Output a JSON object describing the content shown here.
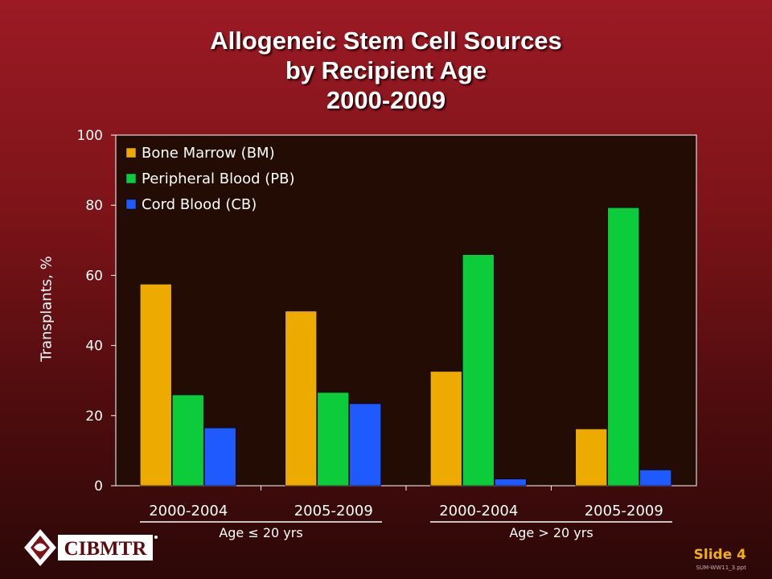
{
  "title_lines": [
    "Allogeneic Stem Cell Sources",
    "by Recipient Age",
    "2000-2009"
  ],
  "chart_data": {
    "type": "bar",
    "ylabel": "Transplants, %",
    "ylim": [
      0,
      100
    ],
    "yticks": [
      0,
      20,
      40,
      60,
      80,
      100
    ],
    "categories": [
      "2000-2004",
      "2005-2009",
      "2000-2004",
      "2005-2009"
    ],
    "groups": [
      {
        "label": "Age ≤ 20 yrs",
        "categories": [
          0,
          1
        ]
      },
      {
        "label": "Age > 20 yrs",
        "categories": [
          2,
          3
        ]
      }
    ],
    "series": [
      {
        "name": "Bone Marrow (BM)",
        "color": "#edaa00",
        "values": [
          57.5,
          49.8,
          32.6,
          16.2
        ]
      },
      {
        "name": "Peripheral Blood (PB)",
        "color": "#0ccc3c",
        "values": [
          25.9,
          26.6,
          65.9,
          79.3
        ]
      },
      {
        "name": "Cord Blood (CB)",
        "color": "#1f5aff",
        "values": [
          16.5,
          23.4,
          1.9,
          4.5
        ]
      }
    ],
    "legend": "top-left",
    "plot_background": "#230c04"
  },
  "footer": {
    "logo_text": "CIBMTR",
    "slide_label": "Slide 4",
    "slide_ref": "SUM-WW11_3.ppt"
  }
}
